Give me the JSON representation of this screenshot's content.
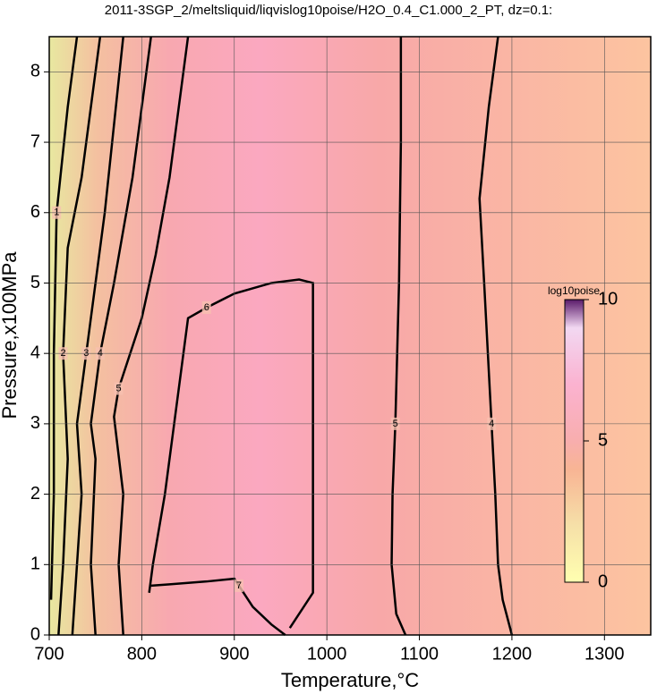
{
  "chart_data": {
    "type": "contour",
    "title": "2011-3SGP_2/meltsliquid/liqvislog10poise/H2O_0.4_C1.000_2_PT, dz=0.1:",
    "x_label": "Temperature,°C",
    "y_label": "Pressure,x100MPa",
    "xlim": [
      700,
      1350
    ],
    "ylim": [
      0,
      8.5
    ],
    "xticks": [
      700,
      800,
      900,
      1000,
      1100,
      1200,
      1300
    ],
    "yticks": [
      0,
      1,
      2,
      3,
      4,
      5,
      6,
      7,
      8
    ],
    "grid": true,
    "contours": [
      {
        "level": 4,
        "x": [
          1200,
          1190,
          1185,
          1182,
          1178,
          1170,
          1165,
          1175,
          1185
        ],
        "y": [
          0,
          0.5,
          1,
          2,
          3,
          5,
          6.2,
          7.5,
          8.5
        ]
      },
      {
        "level": 5,
        "x": [
          1085,
          1075,
          1070,
          1071,
          1074,
          1078,
          1080,
          1080
        ],
        "y": [
          0,
          0.3,
          1,
          2,
          3,
          5,
          7,
          8.5
        ]
      },
      {
        "level": 6,
        "x": [
          960,
          985,
          985,
          985,
          970,
          940,
          900,
          870,
          850,
          845,
          835,
          825,
          812,
          808
        ],
        "y": [
          0.1,
          0.6,
          2,
          5.0,
          5.05,
          5.0,
          4.85,
          4.65,
          4.5,
          4,
          3,
          2,
          1,
          0.6
        ]
      },
      {
        "level": 7,
        "x": [
          810,
          830,
          870,
          900,
          905,
          920,
          940,
          955
        ],
        "y": [
          0.7,
          0.72,
          0.76,
          0.8,
          0.7,
          0.4,
          0.15,
          0
        ]
      },
      {
        "level": 5,
        "x": [
          780,
          775,
          780,
          770,
          775,
          800,
          815,
          830,
          850
        ],
        "y": [
          0,
          1,
          2,
          3.1,
          3.5,
          4.5,
          5.4,
          6.5,
          8.5
        ]
      },
      {
        "level": 4,
        "x": [
          750,
          745,
          750,
          745,
          755,
          770,
          790,
          810
        ],
        "y": [
          0,
          1,
          2.5,
          3,
          4,
          5,
          6.5,
          8.5
        ]
      },
      {
        "level": 3,
        "x": [
          725,
          730,
          735,
          730,
          740,
          750,
          760,
          780
        ],
        "y": [
          0,
          1,
          2,
          3,
          4,
          5,
          6,
          8.5
        ]
      },
      {
        "level": 2,
        "x": [
          710,
          715,
          720,
          715,
          720,
          735,
          755
        ],
        "y": [
          0,
          1,
          2.5,
          4,
          5.5,
          6.5,
          8.5
        ]
      },
      {
        "level": 1,
        "x": [
          702,
          705,
          705,
          708,
          720,
          730
        ],
        "y": [
          0.5,
          2,
          4,
          6,
          7.5,
          8.5
        ]
      }
    ],
    "colorbar": {
      "title": "log10poise",
      "lim": [
        0,
        10
      ],
      "ticks": [
        0,
        5,
        10
      ],
      "stops": [
        {
          "value": 0,
          "color": "#ffffb0"
        },
        {
          "value": 2,
          "color": "#f6e0a8"
        },
        {
          "value": 4,
          "color": "#f8b494"
        },
        {
          "value": 5,
          "color": "#f8aeae"
        },
        {
          "value": 7,
          "color": "#fbb2d0"
        },
        {
          "value": 9,
          "color": "#f2d8f2"
        },
        {
          "value": 10,
          "color": "#5a1a6a"
        }
      ]
    }
  }
}
